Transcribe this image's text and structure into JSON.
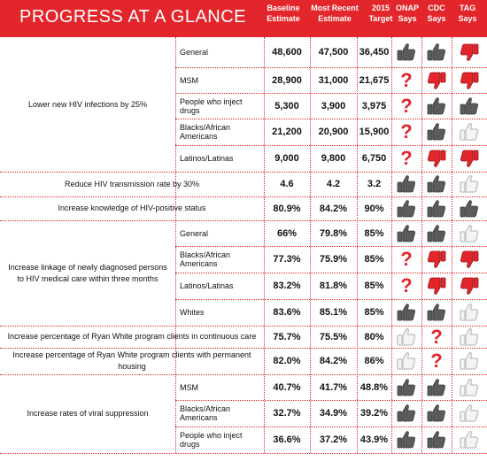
{
  "title": "PROGRESS AT A GLANCE",
  "columns": {
    "baseline": [
      "Baseline",
      "Estimate"
    ],
    "recent": [
      "Most Recent",
      "Estimate"
    ],
    "target": [
      "2015",
      "Target"
    ],
    "onap": [
      "ONAP",
      "Says"
    ],
    "cdc": [
      "CDC",
      "Says"
    ],
    "tag": [
      "TAG",
      "Says"
    ]
  },
  "colors": {
    "accent": "#e3262b",
    "thumb_dark": "#5b5b5b",
    "thumb_red": "#e3262b",
    "thumb_outline": "#c9c9c9"
  },
  "icon_legend": {
    "up": "dark thumbs up",
    "down": "red thumbs down",
    "up-outline": "outlined thumbs up",
    "question": "red question mark"
  },
  "goals": [
    {
      "text": "Lower new HIV infections by 25%",
      "rows": [
        0,
        4
      ]
    },
    {
      "text": "Reduce HIV transmission rate by 30%",
      "rows": [
        5,
        5
      ]
    },
    {
      "text": "Increase knowledge of HIV-positive status",
      "rows": [
        6,
        6
      ]
    },
    {
      "text": "Increase linkage of newly diagnosed persons to HIV medical care within three months",
      "rows": [
        7,
        10
      ]
    },
    {
      "text": "Increase percentage of Ryan White program clients in continuous care",
      "rows": [
        11,
        11
      ]
    },
    {
      "text": "Increase percentage of Ryan White program clients with permanent housing",
      "rows": [
        12,
        12
      ]
    },
    {
      "text": "Increase rates of viral suppression",
      "rows": [
        13,
        15
      ]
    }
  ],
  "rows": [
    {
      "group": "General",
      "baseline": "48,600",
      "recent": "47,500",
      "target": "36,450",
      "onap": "up",
      "cdc": "up",
      "tag": "down"
    },
    {
      "group": "MSM",
      "baseline": "28,900",
      "recent": "31,000",
      "target": "21,675",
      "onap": "question",
      "cdc": "down",
      "tag": "down"
    },
    {
      "group": "People who inject drugs",
      "baseline": "5,300",
      "recent": "3,900",
      "target": "3,975",
      "onap": "question",
      "cdc": "up",
      "tag": "up"
    },
    {
      "group": "Blacks/African Americans",
      "baseline": "21,200",
      "recent": "20,900",
      "target": "15,900",
      "onap": "question",
      "cdc": "up",
      "tag": "up-outline"
    },
    {
      "group": "Latinos/Latinas",
      "baseline": "9,000",
      "recent": "9,800",
      "target": "6,750",
      "onap": "question",
      "cdc": "down",
      "tag": "down"
    },
    {
      "group": "",
      "baseline": "4.6",
      "recent": "4.2",
      "target": "3.2",
      "onap": "up",
      "cdc": "up",
      "tag": "up-outline"
    },
    {
      "group": "",
      "baseline": "80.9%",
      "recent": "84.2%",
      "target": "90%",
      "onap": "up",
      "cdc": "up",
      "tag": "up"
    },
    {
      "group": "General",
      "baseline": "66%",
      "recent": "79.8%",
      "target": "85%",
      "onap": "up",
      "cdc": "up",
      "tag": "up-outline"
    },
    {
      "group": "Blacks/African Americans",
      "baseline": "77.3%",
      "recent": "75.9%",
      "target": "85%",
      "onap": "question",
      "cdc": "down",
      "tag": "down"
    },
    {
      "group": "Latinos/Latinas",
      "baseline": "83.2%",
      "recent": "81.8%",
      "target": "85%",
      "onap": "question",
      "cdc": "down",
      "tag": "down"
    },
    {
      "group": "Whites",
      "baseline": "83.6%",
      "recent": "85.1%",
      "target": "85%",
      "onap": "up",
      "cdc": "up",
      "tag": "up-outline"
    },
    {
      "group": "",
      "baseline": "75.7%",
      "recent": "75.5%",
      "target": "80%",
      "onap": "up-outline",
      "cdc": "question",
      "tag": "up-outline"
    },
    {
      "group": "",
      "baseline": "82.0%",
      "recent": "84.2%",
      "target": "86%",
      "onap": "up-outline",
      "cdc": "question",
      "tag": "up-outline"
    },
    {
      "group": "MSM",
      "baseline": "40.7%",
      "recent": "41.7%",
      "target": "48.8%",
      "onap": "up",
      "cdc": "up",
      "tag": "up-outline"
    },
    {
      "group": "Blacks/African Americans",
      "baseline": "32.7%",
      "recent": "34.9%",
      "target": "39.2%",
      "onap": "up",
      "cdc": "up",
      "tag": "up-outline"
    },
    {
      "group": "People who inject drugs",
      "baseline": "36.6%",
      "recent": "37.2%",
      "target": "43.9%",
      "onap": "up",
      "cdc": "up",
      "tag": "up-outline"
    }
  ]
}
